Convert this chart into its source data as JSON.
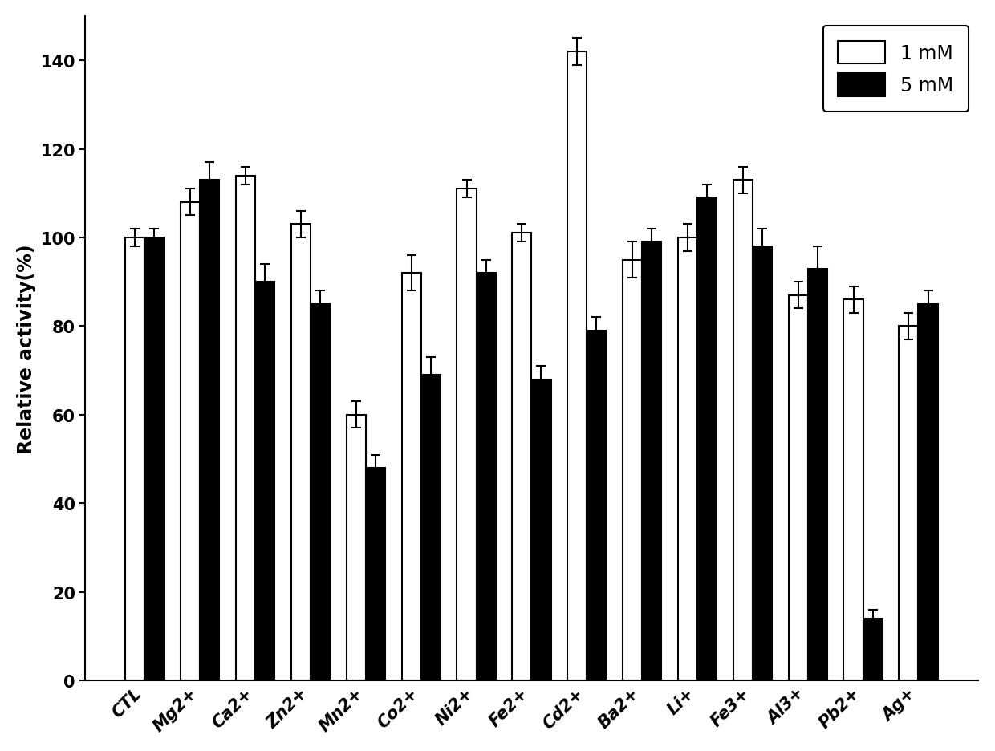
{
  "categories": [
    "CTL",
    "Mg2+",
    "Ca2+",
    "Zn2+",
    "Mn2+",
    "Co2+",
    "Ni2+",
    "Fe2+",
    "Cd2+",
    "Ba2+",
    "Li+",
    "Fe3+",
    "Al3+",
    "Pb2+",
    "Ag+"
  ],
  "values_1mM": [
    100,
    108,
    114,
    103,
    60,
    92,
    111,
    101,
    142,
    95,
    100,
    113,
    87,
    86,
    80
  ],
  "values_5mM": [
    100,
    113,
    90,
    85,
    48,
    69,
    92,
    68,
    79,
    99,
    109,
    98,
    93,
    14,
    85
  ],
  "errors_1mM": [
    2,
    3,
    2,
    3,
    3,
    4,
    2,
    2,
    3,
    4,
    3,
    3,
    3,
    3,
    3
  ],
  "errors_5mM": [
    2,
    4,
    4,
    3,
    3,
    4,
    3,
    3,
    3,
    3,
    3,
    4,
    5,
    2,
    3
  ],
  "ylabel": "Relative activity(%)",
  "ylim": [
    0,
    150
  ],
  "yticks": [
    0,
    20,
    40,
    60,
    80,
    100,
    120,
    140
  ],
  "bar_width": 0.35,
  "color_1mM": "#ffffff",
  "color_5mM": "#000000",
  "edgecolor": "#000000",
  "legend_labels": [
    "1 mM",
    "5 mM"
  ],
  "legend_fontsize": 17,
  "tick_fontsize": 15,
  "ylabel_fontsize": 17,
  "figsize": [
    12.4,
    9.37
  ],
  "dpi": 100
}
